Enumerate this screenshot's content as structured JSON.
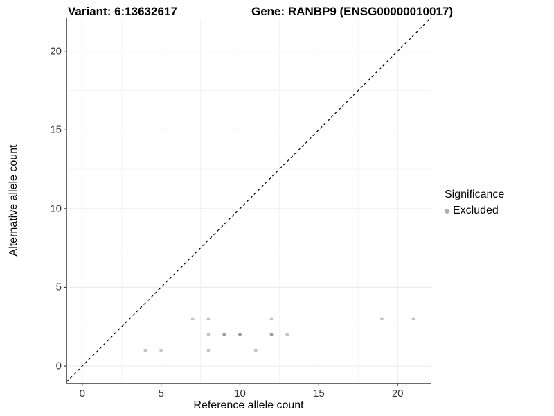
{
  "titles": {
    "variant": "Variant: 6:13632617",
    "gene": "Gene: RANBP9 (ENSG00000010017)"
  },
  "chart_data": {
    "type": "scatter",
    "xlabel": "Reference allele count",
    "ylabel": "Alternative allele count",
    "xlim": [
      -1,
      22.1
    ],
    "ylim": [
      -1.1,
      22.1
    ],
    "x_ticks": [
      0,
      5,
      10,
      15,
      20
    ],
    "y_ticks": [
      0,
      5,
      10,
      15,
      20
    ],
    "x_minor_ticks": [
      2.5,
      7.5,
      12.5,
      17.5
    ],
    "y_minor_ticks": [
      2.5,
      7.5,
      12.5,
      17.5
    ],
    "grid": true,
    "identity_line": {
      "type": "dashed",
      "slope": 1,
      "intercept": 0,
      "color": "#000000"
    },
    "series": [
      {
        "name": "Excluded",
        "points": [
          {
            "x": 4,
            "y": 1,
            "shade": "light"
          },
          {
            "x": 5,
            "y": 1,
            "shade": "light"
          },
          {
            "x": 8,
            "y": 1,
            "shade": "light"
          },
          {
            "x": 11,
            "y": 1,
            "shade": "light"
          },
          {
            "x": 8,
            "y": 2,
            "shade": "light"
          },
          {
            "x": 9,
            "y": 2,
            "shade": "dark"
          },
          {
            "x": 10,
            "y": 2,
            "shade": "dark"
          },
          {
            "x": 12,
            "y": 2,
            "shade": "dark"
          },
          {
            "x": 13,
            "y": 2,
            "shade": "light"
          },
          {
            "x": 7,
            "y": 3,
            "shade": "light"
          },
          {
            "x": 8,
            "y": 3,
            "shade": "light"
          },
          {
            "x": 12,
            "y": 3,
            "shade": "light"
          },
          {
            "x": 19,
            "y": 3,
            "shade": "light"
          },
          {
            "x": 21,
            "y": 3,
            "shade": "light"
          }
        ]
      }
    ],
    "legend": {
      "position": "right",
      "title": "Significance",
      "items": [
        {
          "label": "Excluded",
          "color": "#b0b0b0"
        }
      ]
    }
  },
  "style": {
    "point_light": "#c4c4c4",
    "point_dark": "#9d9d9d",
    "grid_major": "#e9e9e9",
    "grid_minor": "#f4f4f4",
    "axis_line": "#3a3a3a",
    "tick_mark": "#3a3a3a",
    "identity_line_color": "#000000"
  }
}
